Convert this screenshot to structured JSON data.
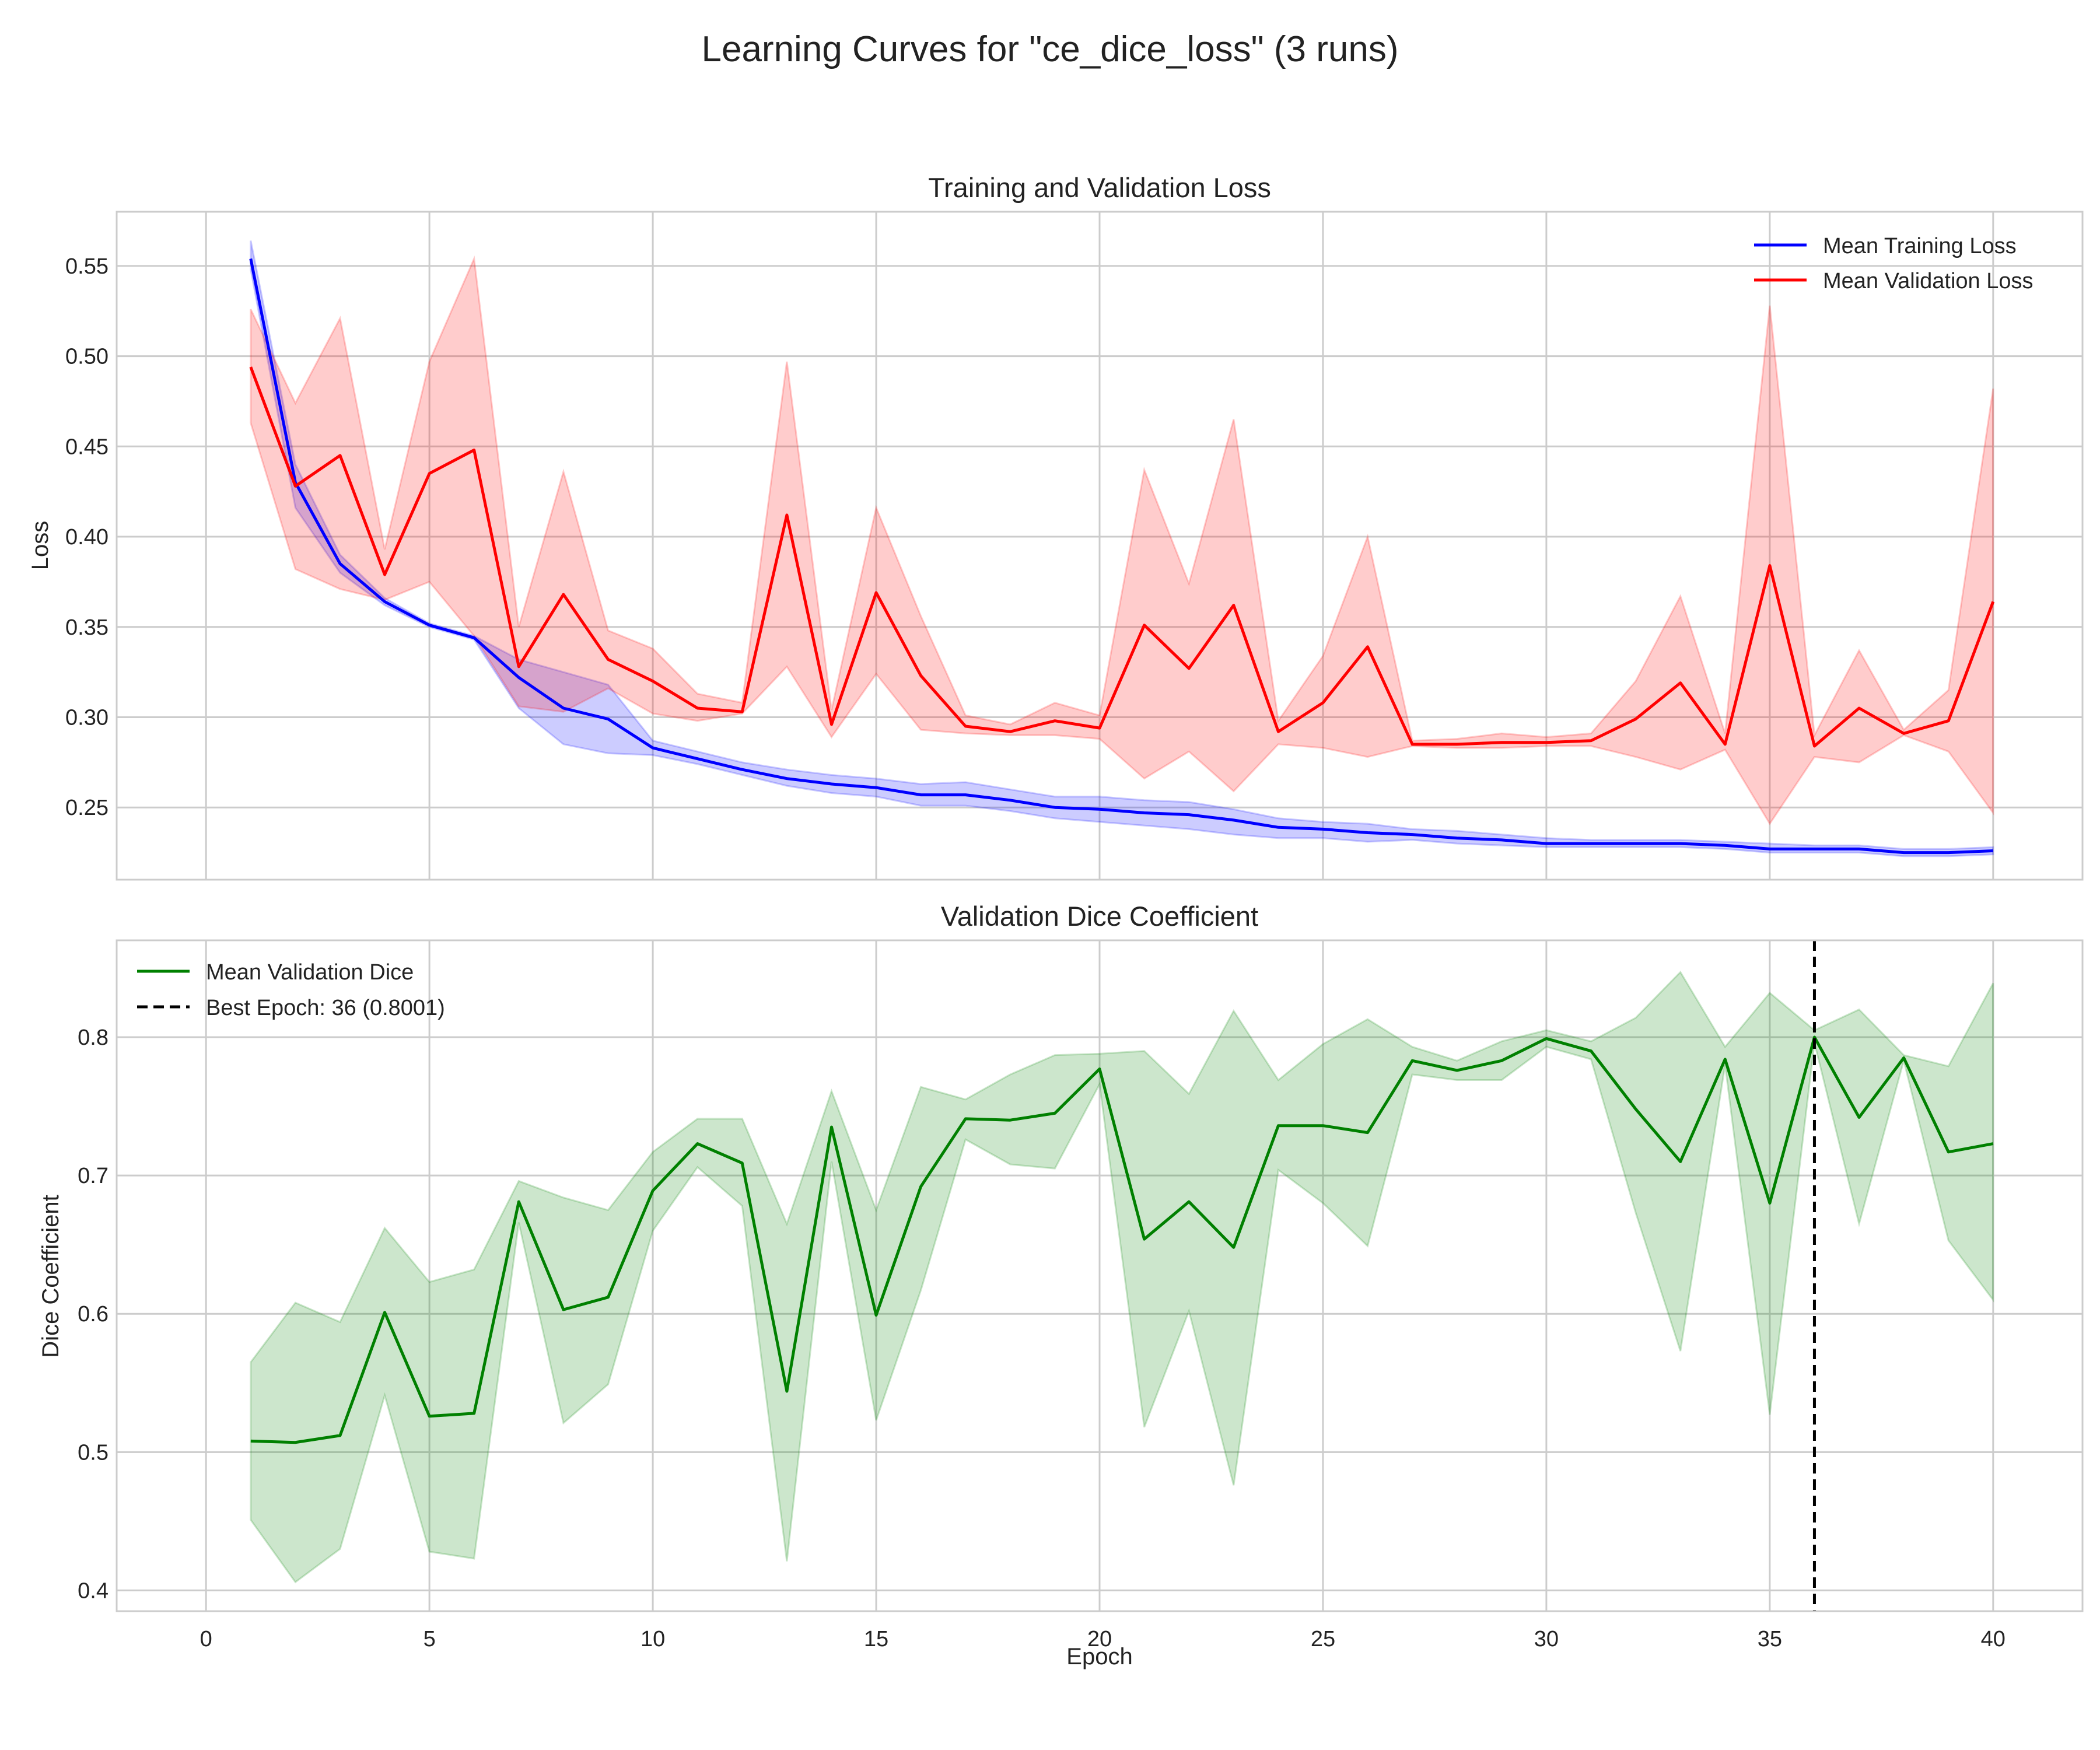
{
  "figure": {
    "suptitle": "Learning Curves for \"ce_dice_loss\" (3 runs)"
  },
  "chart_data": [
    {
      "type": "line",
      "title": "Training and Validation Loss",
      "xlabel": "",
      "ylabel": "Loss",
      "xlim": [
        -2,
        42
      ],
      "ylim": [
        0.21,
        0.58
      ],
      "xticks": [
        0,
        5,
        10,
        15,
        20,
        25,
        30,
        35,
        40
      ],
      "yticks": [
        0.25,
        0.3,
        0.35,
        0.4,
        0.45,
        0.5,
        0.55
      ],
      "ytick_labels": [
        "0.25",
        "0.30",
        "0.35",
        "0.40",
        "0.45",
        "0.50",
        "0.55"
      ],
      "grid": true,
      "legend_position": "upper right",
      "x": [
        1,
        2,
        3,
        4,
        5,
        6,
        7,
        8,
        9,
        10,
        11,
        12,
        13,
        14,
        15,
        16,
        17,
        18,
        19,
        20,
        21,
        22,
        23,
        24,
        25,
        26,
        27,
        28,
        29,
        30,
        31,
        32,
        33,
        34,
        35,
        36,
        37,
        38,
        39,
        40
      ],
      "series": [
        {
          "name": "Mean Training Loss",
          "color": "#0000ff",
          "values": [
            0.554,
            0.43,
            0.385,
            0.364,
            0.351,
            0.344,
            0.322,
            0.305,
            0.299,
            0.283,
            0.277,
            0.271,
            0.266,
            0.263,
            0.261,
            0.257,
            0.257,
            0.254,
            0.25,
            0.249,
            0.247,
            0.246,
            0.243,
            0.239,
            0.238,
            0.236,
            0.235,
            0.233,
            0.232,
            0.23,
            0.23,
            0.23,
            0.23,
            0.229,
            0.227,
            0.227,
            0.227,
            0.225,
            0.225,
            0.226
          ],
          "lower": [
            0.548,
            0.416,
            0.38,
            0.362,
            0.35,
            0.343,
            0.305,
            0.285,
            0.28,
            0.279,
            0.274,
            0.268,
            0.262,
            0.258,
            0.256,
            0.251,
            0.251,
            0.248,
            0.244,
            0.242,
            0.24,
            0.238,
            0.235,
            0.233,
            0.233,
            0.231,
            0.232,
            0.23,
            0.229,
            0.228,
            0.228,
            0.228,
            0.228,
            0.227,
            0.225,
            0.225,
            0.225,
            0.223,
            0.223,
            0.224
          ],
          "upper": [
            0.564,
            0.44,
            0.39,
            0.366,
            0.352,
            0.345,
            0.332,
            0.325,
            0.318,
            0.287,
            0.281,
            0.275,
            0.271,
            0.268,
            0.266,
            0.263,
            0.264,
            0.26,
            0.256,
            0.256,
            0.254,
            0.253,
            0.249,
            0.244,
            0.242,
            0.241,
            0.238,
            0.237,
            0.235,
            0.233,
            0.232,
            0.232,
            0.232,
            0.231,
            0.23,
            0.229,
            0.229,
            0.227,
            0.227,
            0.228
          ]
        },
        {
          "name": "Mean Validation Loss",
          "color": "#ff0000",
          "values": [
            0.494,
            0.428,
            0.445,
            0.379,
            0.435,
            0.448,
            0.328,
            0.368,
            0.332,
            0.32,
            0.305,
            0.303,
            0.412,
            0.296,
            0.369,
            0.323,
            0.295,
            0.292,
            0.298,
            0.294,
            0.351,
            0.327,
            0.362,
            0.292,
            0.308,
            0.339,
            0.285,
            0.285,
            0.286,
            0.286,
            0.287,
            0.299,
            0.319,
            0.285,
            0.384,
            0.284,
            0.305,
            0.291,
            0.298,
            0.364
          ],
          "lower": [
            0.463,
            0.382,
            0.371,
            0.365,
            0.375,
            0.345,
            0.306,
            0.303,
            0.316,
            0.302,
            0.298,
            0.302,
            0.328,
            0.289,
            0.324,
            0.293,
            0.291,
            0.29,
            0.29,
            0.288,
            0.266,
            0.281,
            0.259,
            0.285,
            0.283,
            0.278,
            0.284,
            0.283,
            0.283,
            0.284,
            0.284,
            0.278,
            0.271,
            0.282,
            0.241,
            0.278,
            0.275,
            0.29,
            0.281,
            0.247
          ],
          "upper": [
            0.526,
            0.474,
            0.521,
            0.393,
            0.497,
            0.554,
            0.35,
            0.436,
            0.348,
            0.338,
            0.313,
            0.308,
            0.497,
            0.304,
            0.416,
            0.356,
            0.301,
            0.296,
            0.308,
            0.301,
            0.437,
            0.374,
            0.465,
            0.298,
            0.334,
            0.4,
            0.287,
            0.288,
            0.291,
            0.289,
            0.291,
            0.32,
            0.367,
            0.291,
            0.528,
            0.29,
            0.337,
            0.293,
            0.315,
            0.482
          ]
        }
      ]
    },
    {
      "type": "line",
      "title": "Validation Dice Coefficient",
      "xlabel": "Epoch",
      "ylabel": "Dice Coefficient",
      "xlim": [
        -2,
        42
      ],
      "ylim": [
        0.385,
        0.87
      ],
      "xticks": [
        0,
        5,
        10,
        15,
        20,
        25,
        30,
        35,
        40
      ],
      "yticks": [
        0.4,
        0.5,
        0.6,
        0.7,
        0.8
      ],
      "ytick_labels": [
        "0.4",
        "0.5",
        "0.6",
        "0.7",
        "0.8"
      ],
      "grid": true,
      "legend_position": "upper left",
      "x": [
        1,
        2,
        3,
        4,
        5,
        6,
        7,
        8,
        9,
        10,
        11,
        12,
        13,
        14,
        15,
        16,
        17,
        18,
        19,
        20,
        21,
        22,
        23,
        24,
        25,
        26,
        27,
        28,
        29,
        30,
        31,
        32,
        33,
        34,
        35,
        36,
        37,
        38,
        39,
        40
      ],
      "series": [
        {
          "name": "Mean Validation Dice",
          "color": "#008000",
          "values": [
            0.508,
            0.507,
            0.512,
            0.601,
            0.526,
            0.528,
            0.681,
            0.603,
            0.612,
            0.689,
            0.723,
            0.709,
            0.544,
            0.735,
            0.599,
            0.692,
            0.741,
            0.74,
            0.745,
            0.777,
            0.654,
            0.681,
            0.648,
            0.736,
            0.736,
            0.731,
            0.783,
            0.776,
            0.783,
            0.799,
            0.79,
            0.748,
            0.71,
            0.784,
            0.68,
            0.8,
            0.742,
            0.785,
            0.717,
            0.723
          ],
          "lower": [
            0.451,
            0.406,
            0.43,
            0.541,
            0.428,
            0.423,
            0.666,
            0.521,
            0.549,
            0.66,
            0.706,
            0.678,
            0.421,
            0.71,
            0.523,
            0.617,
            0.726,
            0.708,
            0.705,
            0.766,
            0.518,
            0.602,
            0.476,
            0.704,
            0.68,
            0.649,
            0.773,
            0.769,
            0.769,
            0.793,
            0.784,
            0.673,
            0.573,
            0.78,
            0.527,
            0.796,
            0.665,
            0.783,
            0.653,
            0.61
          ],
          "upper": [
            0.565,
            0.608,
            0.594,
            0.662,
            0.623,
            0.632,
            0.696,
            0.684,
            0.675,
            0.717,
            0.741,
            0.741,
            0.665,
            0.761,
            0.675,
            0.764,
            0.755,
            0.773,
            0.787,
            0.788,
            0.79,
            0.759,
            0.819,
            0.769,
            0.795,
            0.813,
            0.793,
            0.783,
            0.797,
            0.805,
            0.797,
            0.814,
            0.847,
            0.793,
            0.832,
            0.805,
            0.82,
            0.787,
            0.779,
            0.839
          ]
        }
      ],
      "reference_line": {
        "name": "Best Epoch: 36 (0.8001)",
        "x": 36,
        "color": "#000000",
        "style": "dashed"
      }
    }
  ]
}
